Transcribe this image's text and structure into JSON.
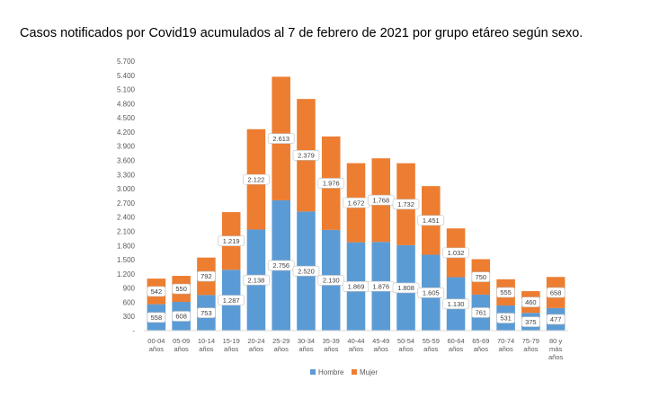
{
  "title": "Casos notificados por Covid19 acumulados al 7 de febrero de 2021 por grupo etáreo según sexo.",
  "chart_data": {
    "type": "bar",
    "stacked": true,
    "categories": [
      [
        "00-04",
        "años"
      ],
      [
        "05-09",
        "años"
      ],
      [
        "10-14",
        "años"
      ],
      [
        "15-19",
        "años"
      ],
      [
        "20-24",
        "años"
      ],
      [
        "25-29",
        "años"
      ],
      [
        "30-34",
        "años"
      ],
      [
        "35-39",
        "años"
      ],
      [
        "40-44",
        "años"
      ],
      [
        "45-49",
        "años"
      ],
      [
        "50-54",
        "años"
      ],
      [
        "55-59",
        "años"
      ],
      [
        "60-64",
        "años"
      ],
      [
        "65-69",
        "años"
      ],
      [
        "70-74",
        "años"
      ],
      [
        "75-79",
        "años"
      ],
      [
        "80 y",
        "más",
        "años"
      ]
    ],
    "series": [
      {
        "name": "Hombre",
        "color": "#5B9BD5",
        "values": [
          558,
          608,
          753,
          1287,
          2138,
          2756,
          2520,
          2130,
          1869,
          1876,
          1808,
          1605,
          1130,
          761,
          531,
          375,
          477
        ],
        "labels": [
          "558",
          "608",
          "753",
          "1.287",
          "2.138",
          "2.756",
          "2.520",
          "2.130",
          "1.869",
          "1.876",
          "1.808",
          "1.605",
          "1.130",
          "761",
          "531",
          "375",
          "477"
        ]
      },
      {
        "name": "Mujer",
        "color": "#ED7D31",
        "values": [
          542,
          550,
          792,
          1219,
          2122,
          2613,
          2379,
          1976,
          1672,
          1768,
          1732,
          1451,
          1032,
          750,
          555,
          460,
          658
        ],
        "labels": [
          "542",
          "550",
          "792",
          "1.219",
          "2.122",
          "2.613",
          "2.379",
          "1.976",
          "1.672",
          "1.768",
          "1.732",
          "1.451",
          "1.032",
          "750",
          "555",
          "460",
          "658"
        ]
      }
    ],
    "yticks": [
      0,
      300,
      600,
      900,
      1200,
      1500,
      1800,
      2100,
      2400,
      2700,
      3000,
      3300,
      3600,
      3900,
      4200,
      4500,
      4800,
      5100,
      5400,
      5700
    ],
    "ytick_labels": [
      "-",
      "300",
      "600",
      "900",
      "1.200",
      "1.500",
      "1.800",
      "2.100",
      "2.400",
      "2.700",
      "3.000",
      "3.300",
      "3.600",
      "3.900",
      "4.200",
      "4.500",
      "4.800",
      "5.100",
      "5.400",
      "5.700"
    ],
    "ylim": [
      0,
      5700
    ],
    "grid": false,
    "legend_position": "bottom"
  }
}
